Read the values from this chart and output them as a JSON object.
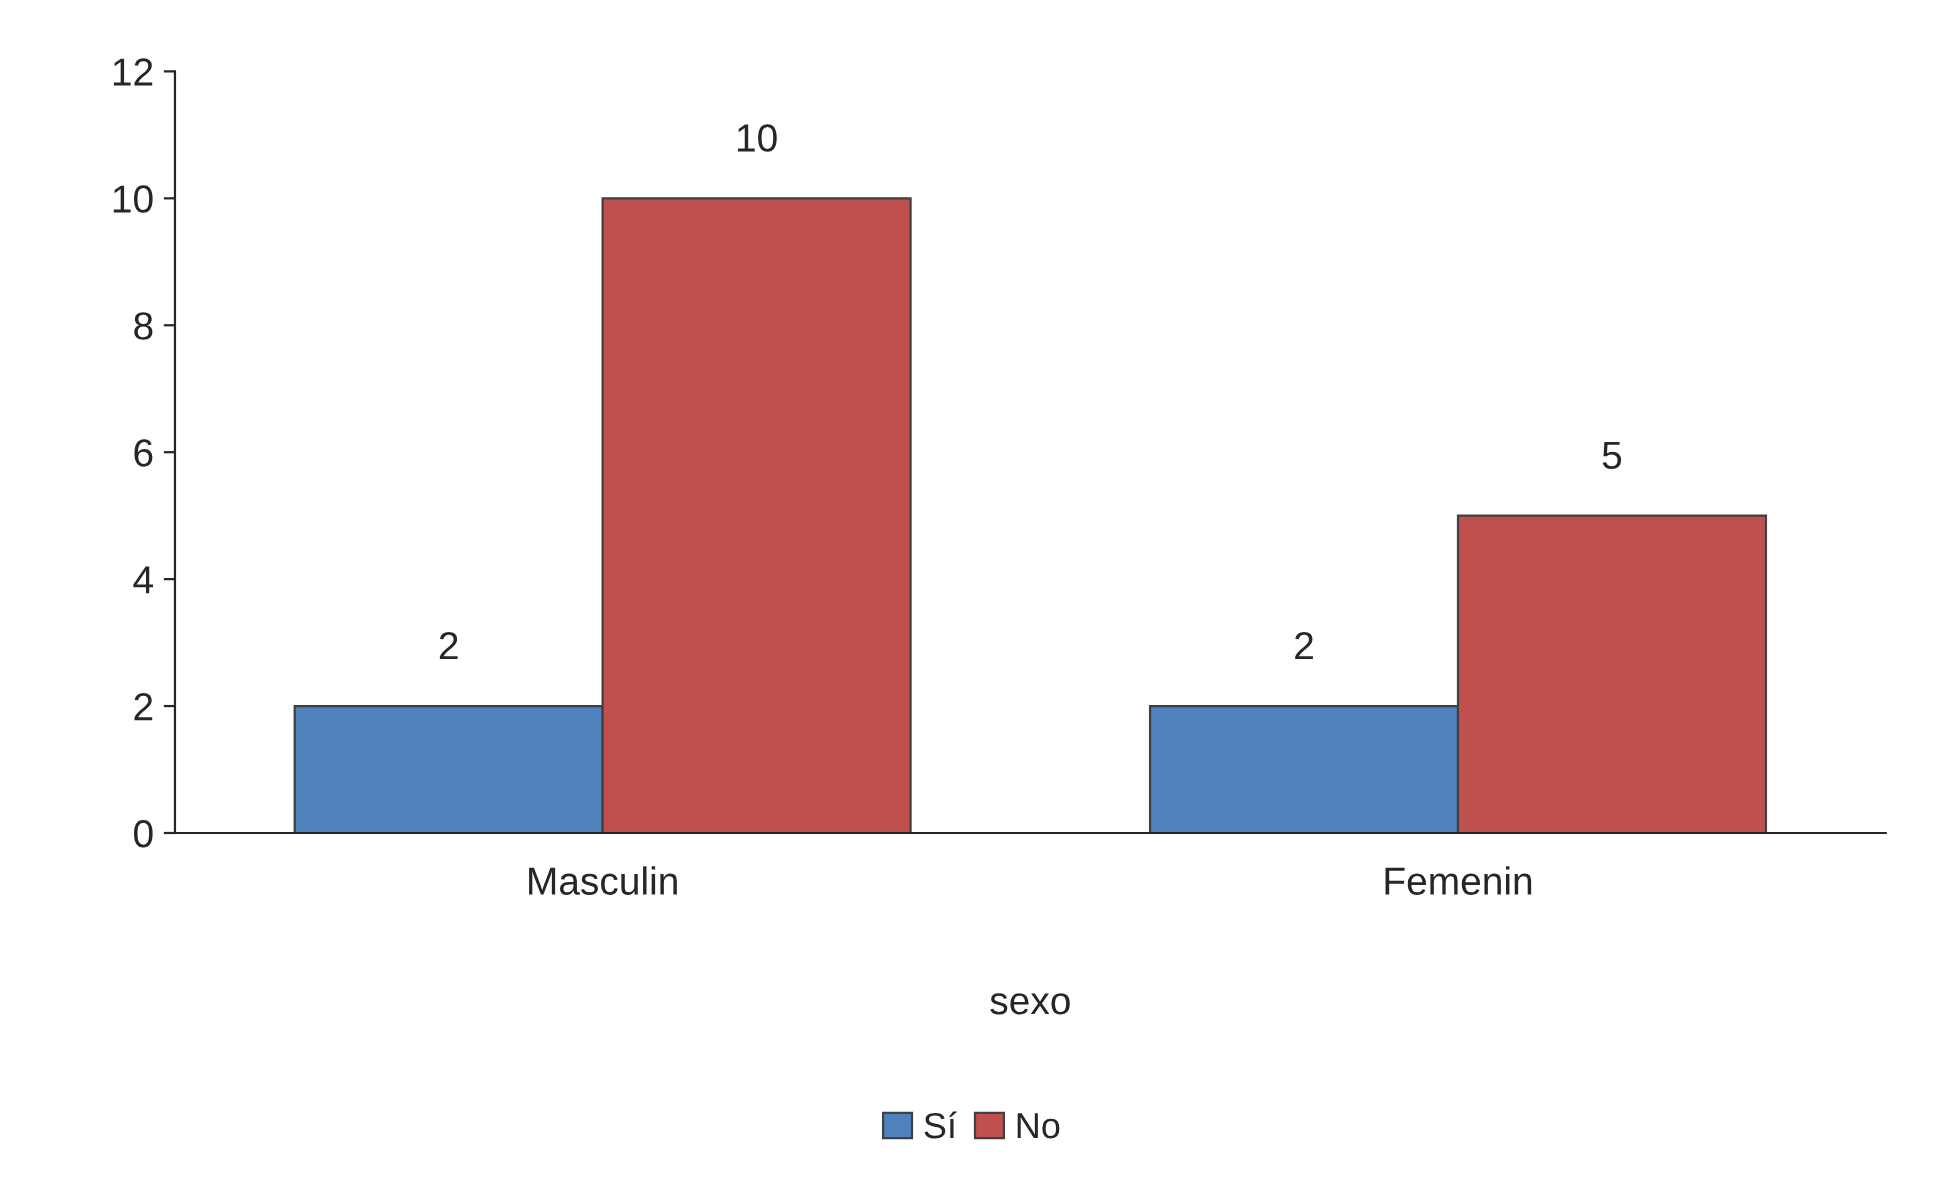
{
  "chart_data": {
    "type": "bar",
    "categories": [
      "Masculin",
      "Femenin"
    ],
    "series": [
      {
        "name": "Sí",
        "color": "#4f81bd",
        "values": [
          2,
          2
        ]
      },
      {
        "name": "No",
        "color": "#c0504d",
        "values": [
          10,
          5
        ]
      }
    ],
    "xlabel": "sexo",
    "ylim": [
      0,
      12
    ],
    "yticks": [
      0,
      2,
      4,
      6,
      8,
      10,
      12
    ],
    "data_labels": true,
    "grid": false,
    "legend": "bottom"
  }
}
